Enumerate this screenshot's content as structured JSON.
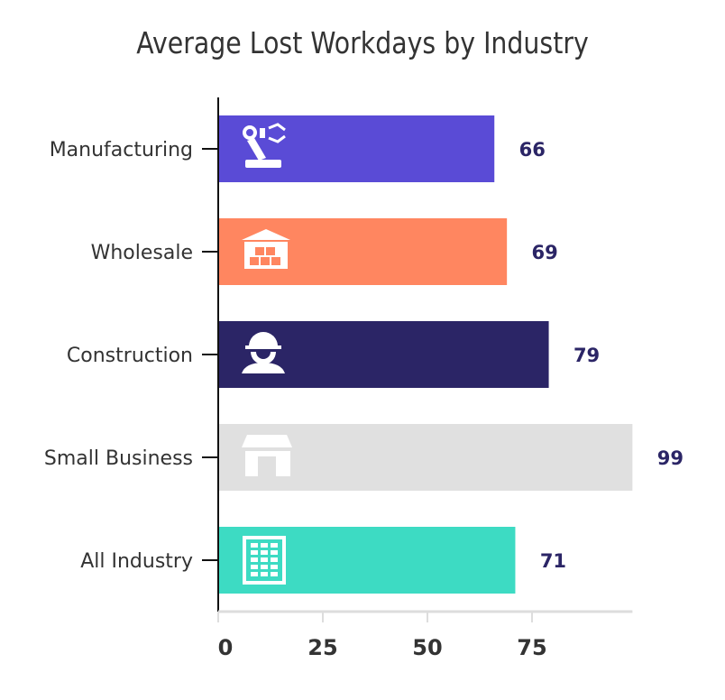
{
  "chart_data": {
    "type": "bar",
    "orientation": "horizontal",
    "title": "Average Lost Workdays by Industry",
    "categories": [
      "Manufacturing",
      "Wholesale",
      "Construction",
      "Small Business",
      "All Industry"
    ],
    "values": [
      66,
      69,
      79,
      99,
      71
    ],
    "colors": [
      "#5a4bd6",
      "#ff8660",
      "#2b2566",
      "#e0e0e0",
      "#3ddbc3"
    ],
    "icons": [
      "robot-arm-icon",
      "warehouse-icon",
      "construction-worker-icon",
      "storefront-icon",
      "office-building-icon"
    ],
    "xlabel": "",
    "ylabel": "",
    "xlim": [
      0,
      99
    ],
    "xticks": [
      0,
      25,
      50,
      75
    ],
    "grid": false,
    "value_label_color": "#2b2566"
  }
}
